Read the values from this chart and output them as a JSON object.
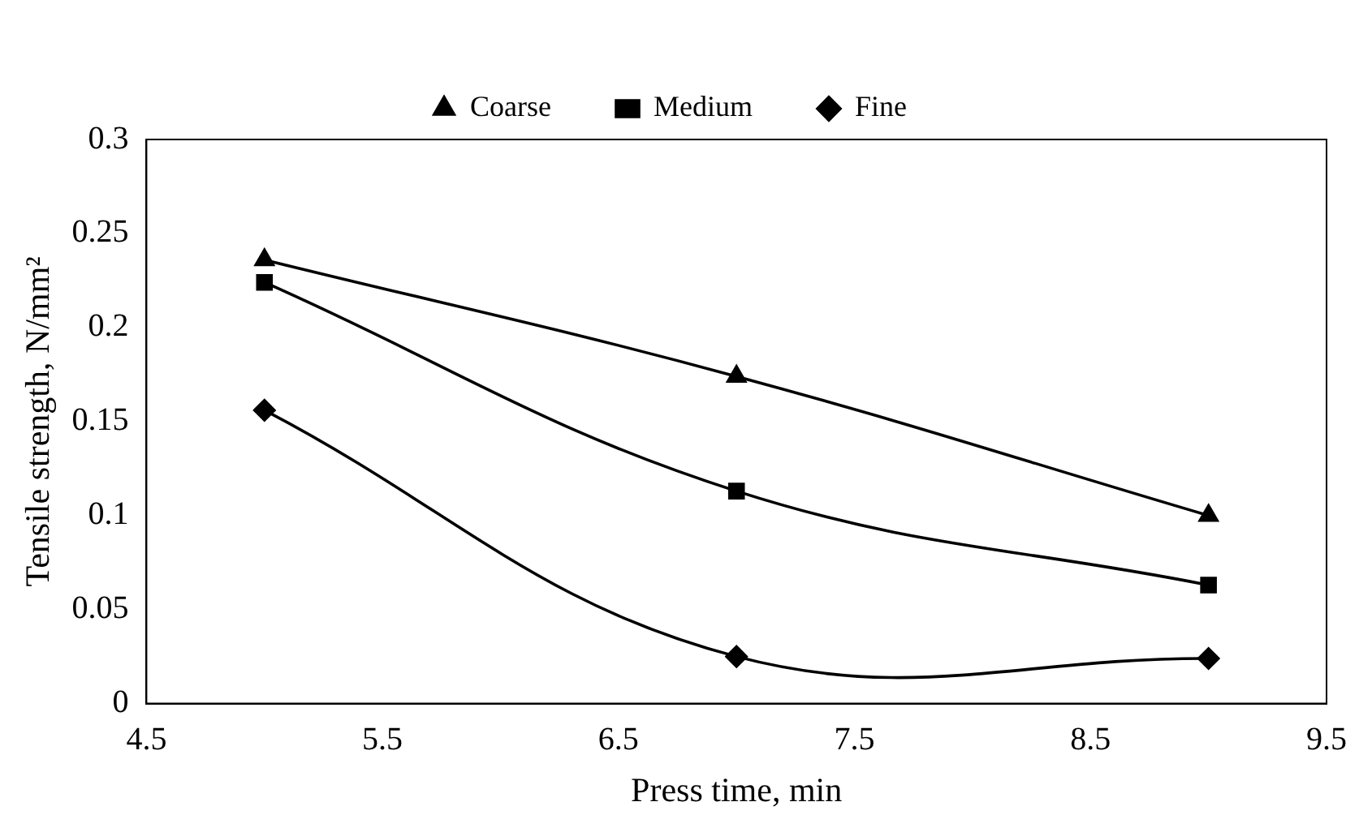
{
  "chart_data": {
    "type": "line",
    "xlabel": "Press time, min",
    "ylabel": "Tensile strength, N/mm²",
    "x": [
      5,
      7,
      9
    ],
    "series": [
      {
        "name": "Coarse",
        "color": "#000000",
        "marker": "triangle",
        "values": [
          0.236,
          0.174,
          0.1
        ]
      },
      {
        "name": "Medium",
        "color": "#000000",
        "marker": "square",
        "values": [
          0.224,
          0.113,
          0.063
        ]
      },
      {
        "name": "Fine",
        "color": "#000000",
        "marker": "diamond",
        "values": [
          0.156,
          0.025,
          0.024
        ]
      }
    ],
    "xlim": [
      4.5,
      9.5
    ],
    "xticks": [
      4.5,
      5.5,
      6.5,
      7.5,
      8.5,
      9.5
    ],
    "ylim": [
      0,
      0.3
    ],
    "yticks": [
      0,
      0.05,
      0.1,
      0.15,
      0.2,
      0.25,
      0.3
    ],
    "grid": false,
    "legend": "top",
    "line_style": "solid"
  }
}
